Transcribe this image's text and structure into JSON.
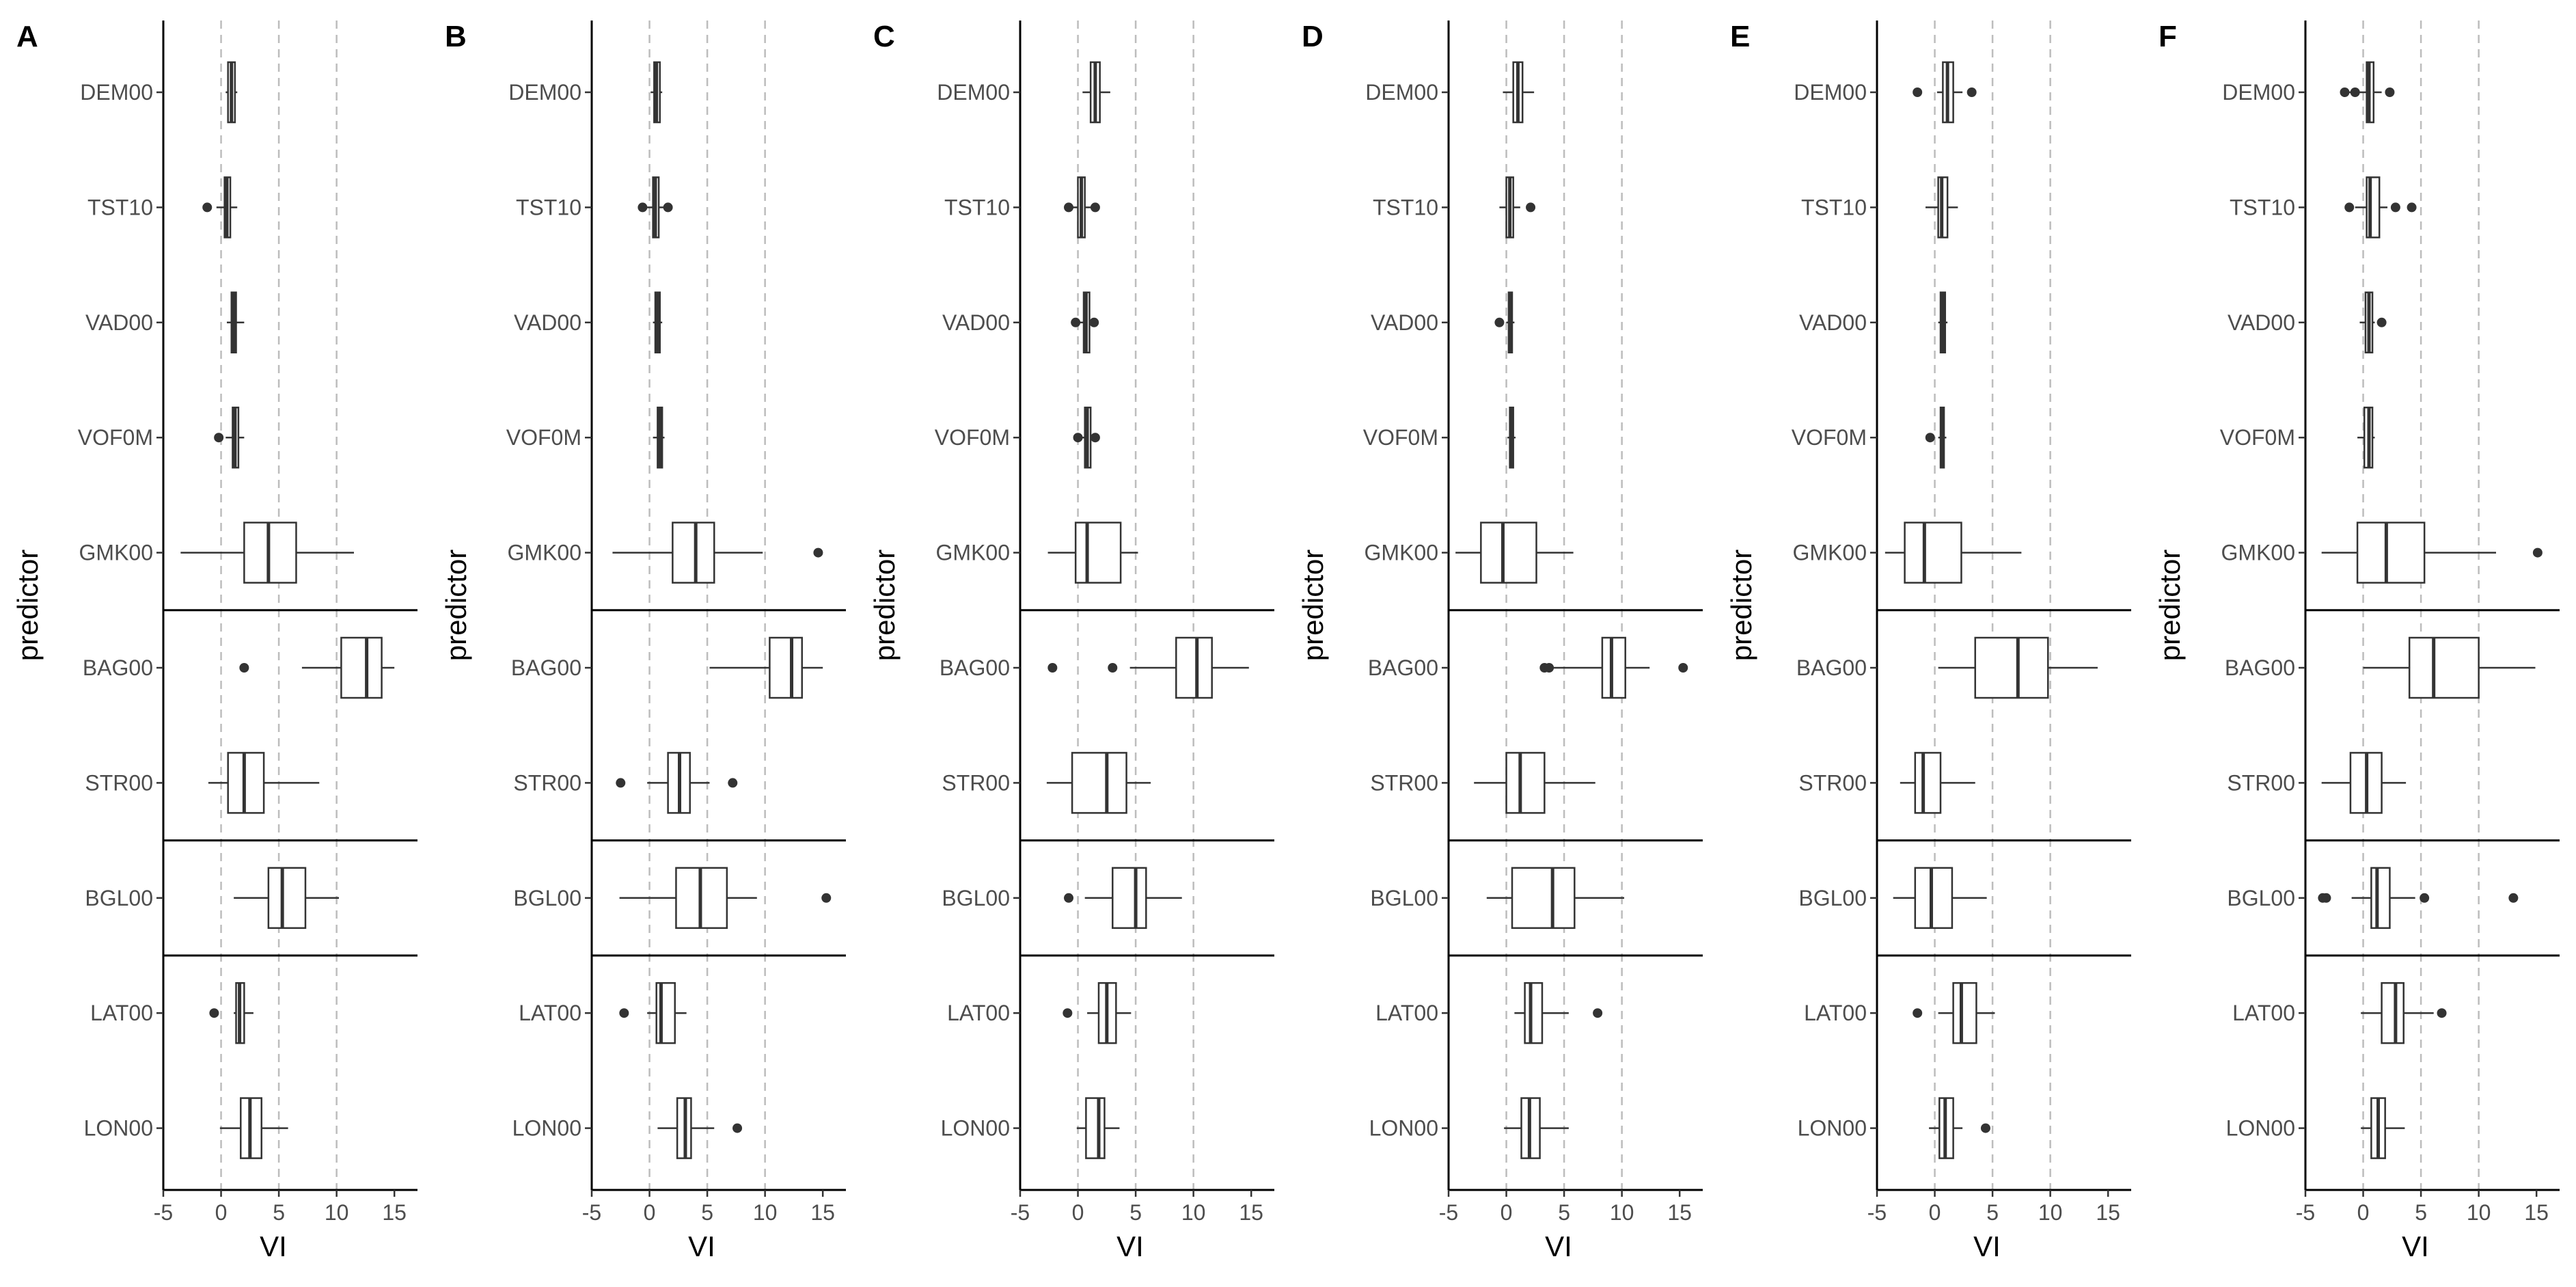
{
  "chart_data": {
    "type": "boxplot",
    "orientation": "horizontal",
    "xlabel": "VI",
    "ylabel": "predictor",
    "xlim": [
      -5,
      17
    ],
    "xticks": [
      "-5",
      "0",
      "5",
      "10",
      "15"
    ],
    "reference_lines": [
      0,
      5,
      10
    ],
    "predictors": [
      "DEM00",
      "TST10",
      "VAD00",
      "VOF0M",
      "GMK00",
      "BAG00",
      "STR00",
      "BGL00",
      "LAT00",
      "LON00"
    ],
    "group_separators_after": [
      "GMK00",
      "STR00",
      "BGL00"
    ],
    "panels": [
      {
        "label": "A",
        "boxes": [
          {
            "predictor": "DEM00",
            "whisker_low": 0.4,
            "q1": 0.6,
            "median": 0.9,
            "q3": 1.2,
            "whisker_high": 1.4,
            "outliers": []
          },
          {
            "predictor": "TST10",
            "whisker_low": -0.4,
            "q1": 0.3,
            "median": 0.5,
            "q3": 0.8,
            "whisker_high": 1.4,
            "outliers": [
              -1.2
            ]
          },
          {
            "predictor": "VAD00",
            "whisker_low": 0.5,
            "q1": 0.9,
            "median": 1.1,
            "q3": 1.3,
            "whisker_high": 2.0,
            "outliers": []
          },
          {
            "predictor": "VOF0M",
            "whisker_low": 0.4,
            "q1": 1.0,
            "median": 1.2,
            "q3": 1.5,
            "whisker_high": 2.0,
            "outliers": [
              -0.2
            ]
          },
          {
            "predictor": "GMK00",
            "whisker_low": -3.5,
            "q1": 2.0,
            "median": 4.1,
            "q3": 6.5,
            "whisker_high": 11.5,
            "outliers": []
          },
          {
            "predictor": "BAG00",
            "whisker_low": 7.0,
            "q1": 10.4,
            "median": 12.6,
            "q3": 13.9,
            "whisker_high": 15.0,
            "outliers": [
              2.0
            ]
          },
          {
            "predictor": "STR00",
            "whisker_low": -1.1,
            "q1": 0.6,
            "median": 2.0,
            "q3": 3.7,
            "whisker_high": 8.5,
            "outliers": []
          },
          {
            "predictor": "BGL00",
            "whisker_low": 1.1,
            "q1": 4.1,
            "median": 5.3,
            "q3": 7.3,
            "whisker_high": 10.2,
            "outliers": []
          },
          {
            "predictor": "LAT00",
            "whisker_low": 1.1,
            "q1": 1.3,
            "median": 1.6,
            "q3": 2.0,
            "whisker_high": 2.8,
            "outliers": [
              -0.6
            ]
          },
          {
            "predictor": "LON00",
            "whisker_low": -0.1,
            "q1": 1.7,
            "median": 2.5,
            "q3": 3.5,
            "whisker_high": 5.8,
            "outliers": []
          }
        ]
      },
      {
        "label": "B",
        "boxes": [
          {
            "predictor": "DEM00",
            "whisker_low": 0.1,
            "q1": 0.4,
            "median": 0.6,
            "q3": 0.9,
            "whisker_high": 1.1,
            "outliers": []
          },
          {
            "predictor": "TST10",
            "whisker_low": -0.2,
            "q1": 0.3,
            "median": 0.5,
            "q3": 0.8,
            "whisker_high": 1.3,
            "outliers": [
              -0.6,
              1.6
            ]
          },
          {
            "predictor": "VAD00",
            "whisker_low": 0.3,
            "q1": 0.5,
            "median": 0.7,
            "q3": 0.9,
            "whisker_high": 1.1,
            "outliers": []
          },
          {
            "predictor": "VOF0M",
            "whisker_low": 0.3,
            "q1": 0.7,
            "median": 0.9,
            "q3": 1.1,
            "whisker_high": 1.3,
            "outliers": []
          },
          {
            "predictor": "GMK00",
            "whisker_low": -3.2,
            "q1": 2.0,
            "median": 4.0,
            "q3": 5.6,
            "whisker_high": 9.8,
            "outliers": [
              14.6
            ]
          },
          {
            "predictor": "BAG00",
            "whisker_low": 5.2,
            "q1": 10.4,
            "median": 12.3,
            "q3": 13.2,
            "whisker_high": 15.0,
            "outliers": []
          },
          {
            "predictor": "STR00",
            "whisker_low": -0.2,
            "q1": 1.6,
            "median": 2.6,
            "q3": 3.5,
            "whisker_high": 5.2,
            "outliers": [
              -2.5,
              7.2
            ]
          },
          {
            "predictor": "BGL00",
            "whisker_low": -2.6,
            "q1": 2.3,
            "median": 4.4,
            "q3": 6.7,
            "whisker_high": 9.3,
            "outliers": [
              15.3
            ]
          },
          {
            "predictor": "LAT00",
            "whisker_low": -0.2,
            "q1": 0.6,
            "median": 1.0,
            "q3": 2.2,
            "whisker_high": 3.2,
            "outliers": [
              -2.2
            ]
          },
          {
            "predictor": "LON00",
            "whisker_low": 0.7,
            "q1": 2.4,
            "median": 3.1,
            "q3": 3.6,
            "whisker_high": 5.6,
            "outliers": [
              7.6
            ]
          }
        ]
      },
      {
        "label": "C",
        "boxes": [
          {
            "predictor": "DEM00",
            "whisker_low": 0.4,
            "q1": 1.1,
            "median": 1.5,
            "q3": 1.9,
            "whisker_high": 2.8,
            "outliers": []
          },
          {
            "predictor": "TST10",
            "whisker_low": -0.5,
            "q1": 0.0,
            "median": 0.3,
            "q3": 0.6,
            "whisker_high": 1.1,
            "outliers": [
              -0.8,
              1.5
            ]
          },
          {
            "predictor": "VAD00",
            "whisker_low": 0.2,
            "q1": 0.5,
            "median": 0.7,
            "q3": 1.0,
            "whisker_high": 1.2,
            "outliers": [
              -0.2,
              1.4
            ]
          },
          {
            "predictor": "VOF0M",
            "whisker_low": 0.3,
            "q1": 0.6,
            "median": 0.8,
            "q3": 1.1,
            "whisker_high": 1.3,
            "outliers": [
              0.0,
              1.5
            ]
          },
          {
            "predictor": "GMK00",
            "whisker_low": -2.6,
            "q1": -0.2,
            "median": 0.8,
            "q3": 3.7,
            "whisker_high": 5.2,
            "outliers": []
          },
          {
            "predictor": "BAG00",
            "whisker_low": 4.5,
            "q1": 8.5,
            "median": 10.3,
            "q3": 11.6,
            "whisker_high": 14.8,
            "outliers": [
              -2.2,
              3.0
            ]
          },
          {
            "predictor": "STR00",
            "whisker_low": -2.7,
            "q1": -0.5,
            "median": 2.5,
            "q3": 4.2,
            "whisker_high": 6.3,
            "outliers": []
          },
          {
            "predictor": "BGL00",
            "whisker_low": 0.6,
            "q1": 3.0,
            "median": 5.0,
            "q3": 5.9,
            "whisker_high": 9.0,
            "outliers": [
              -0.8
            ]
          },
          {
            "predictor": "LAT00",
            "whisker_low": 0.8,
            "q1": 1.8,
            "median": 2.5,
            "q3": 3.3,
            "whisker_high": 4.6,
            "outliers": [
              -0.9
            ]
          },
          {
            "predictor": "LON00",
            "whisker_low": -0.1,
            "q1": 0.7,
            "median": 1.8,
            "q3": 2.3,
            "whisker_high": 3.6,
            "outliers": []
          }
        ]
      },
      {
        "label": "D",
        "boxes": [
          {
            "predictor": "DEM00",
            "whisker_low": -0.3,
            "q1": 0.6,
            "median": 1.0,
            "q3": 1.4,
            "whisker_high": 2.4,
            "outliers": []
          },
          {
            "predictor": "TST10",
            "whisker_low": -0.6,
            "q1": 0.0,
            "median": 0.3,
            "q3": 0.6,
            "whisker_high": 1.2,
            "outliers": [
              2.1
            ]
          },
          {
            "predictor": "VAD00",
            "whisker_low": 0.0,
            "q1": 0.2,
            "median": 0.4,
            "q3": 0.5,
            "whisker_high": 0.7,
            "outliers": [
              -0.6
            ]
          },
          {
            "predictor": "VOF0M",
            "whisker_low": 0.1,
            "q1": 0.3,
            "median": 0.5,
            "q3": 0.6,
            "whisker_high": 0.8,
            "outliers": []
          },
          {
            "predictor": "GMK00",
            "whisker_low": -4.4,
            "q1": -2.2,
            "median": -0.3,
            "q3": 2.6,
            "whisker_high": 5.8,
            "outliers": []
          },
          {
            "predictor": "BAG00",
            "whisker_low": 4.0,
            "q1": 8.3,
            "median": 9.1,
            "q3": 10.3,
            "whisker_high": 12.4,
            "outliers": [
              3.3,
              3.7,
              15.3
            ]
          },
          {
            "predictor": "STR00",
            "whisker_low": -2.8,
            "q1": 0.0,
            "median": 1.2,
            "q3": 3.3,
            "whisker_high": 7.7,
            "outliers": []
          },
          {
            "predictor": "BGL00",
            "whisker_low": -1.7,
            "q1": 0.5,
            "median": 4.0,
            "q3": 5.9,
            "whisker_high": 10.2,
            "outliers": []
          },
          {
            "predictor": "LAT00",
            "whisker_low": 0.7,
            "q1": 1.6,
            "median": 2.1,
            "q3": 3.1,
            "whisker_high": 5.4,
            "outliers": [
              7.9
            ]
          },
          {
            "predictor": "LON00",
            "whisker_low": -0.2,
            "q1": 1.3,
            "median": 2.0,
            "q3": 2.9,
            "whisker_high": 5.4,
            "outliers": []
          }
        ]
      },
      {
        "label": "E",
        "boxes": [
          {
            "predictor": "DEM00",
            "whisker_low": 0.2,
            "q1": 0.7,
            "median": 1.1,
            "q3": 1.6,
            "whisker_high": 2.4,
            "outliers": [
              -1.5,
              3.2
            ]
          },
          {
            "predictor": "TST10",
            "whisker_low": -0.8,
            "q1": 0.3,
            "median": 0.6,
            "q3": 1.1,
            "whisker_high": 2.0,
            "outliers": []
          },
          {
            "predictor": "VAD00",
            "whisker_low": 0.3,
            "q1": 0.5,
            "median": 0.7,
            "q3": 0.9,
            "whisker_high": 1.1,
            "outliers": []
          },
          {
            "predictor": "VOF0M",
            "whisker_low": 0.3,
            "q1": 0.5,
            "median": 0.6,
            "q3": 0.8,
            "whisker_high": 1.0,
            "outliers": [
              -0.4
            ]
          },
          {
            "predictor": "GMK00",
            "whisker_low": -4.3,
            "q1": -2.6,
            "median": -0.9,
            "q3": 2.3,
            "whisker_high": 7.5,
            "outliers": []
          },
          {
            "predictor": "BAG00",
            "whisker_low": 0.3,
            "q1": 3.5,
            "median": 7.2,
            "q3": 9.8,
            "whisker_high": 14.1,
            "outliers": []
          },
          {
            "predictor": "STR00",
            "whisker_low": -3.0,
            "q1": -1.7,
            "median": -1.0,
            "q3": 0.5,
            "whisker_high": 3.5,
            "outliers": []
          },
          {
            "predictor": "BGL00",
            "whisker_low": -3.6,
            "q1": -1.7,
            "median": -0.3,
            "q3": 1.5,
            "whisker_high": 4.5,
            "outliers": []
          },
          {
            "predictor": "LAT00",
            "whisker_low": 0.3,
            "q1": 1.6,
            "median": 2.3,
            "q3": 3.6,
            "whisker_high": 5.2,
            "outliers": [
              -1.5
            ]
          },
          {
            "predictor": "LON00",
            "whisker_low": -0.5,
            "q1": 0.4,
            "median": 0.9,
            "q3": 1.6,
            "whisker_high": 2.4,
            "outliers": [
              4.4
            ]
          }
        ]
      },
      {
        "label": "F",
        "boxes": [
          {
            "predictor": "DEM00",
            "whisker_low": -1.3,
            "q1": 0.3,
            "median": 0.5,
            "q3": 0.9,
            "whisker_high": 1.6,
            "outliers": [
              -1.6,
              -0.7,
              2.3
            ]
          },
          {
            "predictor": "TST10",
            "whisker_low": -0.7,
            "q1": 0.3,
            "median": 0.6,
            "q3": 1.4,
            "whisker_high": 2.1,
            "outliers": [
              -1.2,
              2.8,
              4.2
            ]
          },
          {
            "predictor": "VAD00",
            "whisker_low": -0.3,
            "q1": 0.2,
            "median": 0.5,
            "q3": 0.8,
            "whisker_high": 1.0,
            "outliers": [
              1.6
            ]
          },
          {
            "predictor": "VOF0M",
            "whisker_low": -0.5,
            "q1": 0.1,
            "median": 0.5,
            "q3": 0.8,
            "whisker_high": 1.0,
            "outliers": []
          },
          {
            "predictor": "GMK00",
            "whisker_low": -3.6,
            "q1": -0.5,
            "median": 2.0,
            "q3": 5.3,
            "whisker_high": 11.5,
            "outliers": [
              15.1
            ]
          },
          {
            "predictor": "BAG00",
            "whisker_low": 0.0,
            "q1": 4.0,
            "median": 6.1,
            "q3": 10.0,
            "whisker_high": 14.9,
            "outliers": []
          },
          {
            "predictor": "STR00",
            "whisker_low": -3.6,
            "q1": -1.1,
            "median": 0.3,
            "q3": 1.6,
            "whisker_high": 3.7,
            "outliers": []
          },
          {
            "predictor": "BGL00",
            "whisker_low": -1.0,
            "q1": 0.7,
            "median": 1.2,
            "q3": 2.3,
            "whisker_high": 4.5,
            "outliers": [
              -3.2,
              -3.5,
              5.3,
              13.0
            ]
          },
          {
            "predictor": "LAT00",
            "whisker_low": -0.2,
            "q1": 1.6,
            "median": 2.8,
            "q3": 3.5,
            "whisker_high": 6.1,
            "outliers": [
              6.8
            ]
          },
          {
            "predictor": "LON00",
            "whisker_low": -0.2,
            "q1": 0.7,
            "median": 1.3,
            "q3": 1.9,
            "whisker_high": 3.6,
            "outliers": []
          }
        ]
      }
    ]
  }
}
